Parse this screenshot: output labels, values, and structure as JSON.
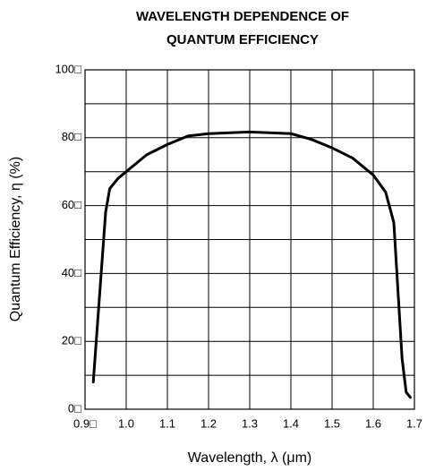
{
  "chart_data": {
    "type": "line",
    "title": [
      "WAVELENGTH DEPENDENCE OF",
      "QUANTUM EFFICIENCY"
    ],
    "x_label": "Wavelength, λ (μm)",
    "y_label": "Quantum Efficiency, η (%)",
    "x": [
      0.92,
      0.95,
      0.96,
      0.98,
      1.0,
      1.05,
      1.1,
      1.15,
      1.2,
      1.3,
      1.4,
      1.45,
      1.5,
      1.55,
      1.6,
      1.63,
      1.65,
      1.66,
      1.67,
      1.68,
      1.69
    ],
    "series": [
      {
        "color": "#000000",
        "values": [
          8,
          58,
          65,
          68,
          70,
          75,
          78,
          80.5,
          81.2,
          81.7,
          81.2,
          79.5,
          77,
          74,
          69,
          64,
          55,
          35,
          15,
          5,
          3.5
        ]
      }
    ],
    "xlim": [
      0.9,
      1.7
    ],
    "xticks": [
      {
        "value": 0.9,
        "label": "0.9□"
      },
      {
        "value": 1,
        "label": "1.0"
      },
      1.1,
      1.2,
      1.3,
      1.4,
      1.5,
      1.6,
      1.7
    ],
    "ylim": [
      0,
      100
    ],
    "yticks": [
      {
        "value": 0,
        "label": "0□"
      },
      {
        "value": 20,
        "label": "20□"
      },
      {
        "value": 40,
        "label": "40□"
      },
      {
        "value": 60,
        "label": "60□"
      },
      {
        "value": 80,
        "label": "80□"
      },
      {
        "value": 100,
        "label": "100□"
      }
    ],
    "yminorticks": [
      10,
      30,
      50,
      70,
      90
    ],
    "grid": true
  }
}
